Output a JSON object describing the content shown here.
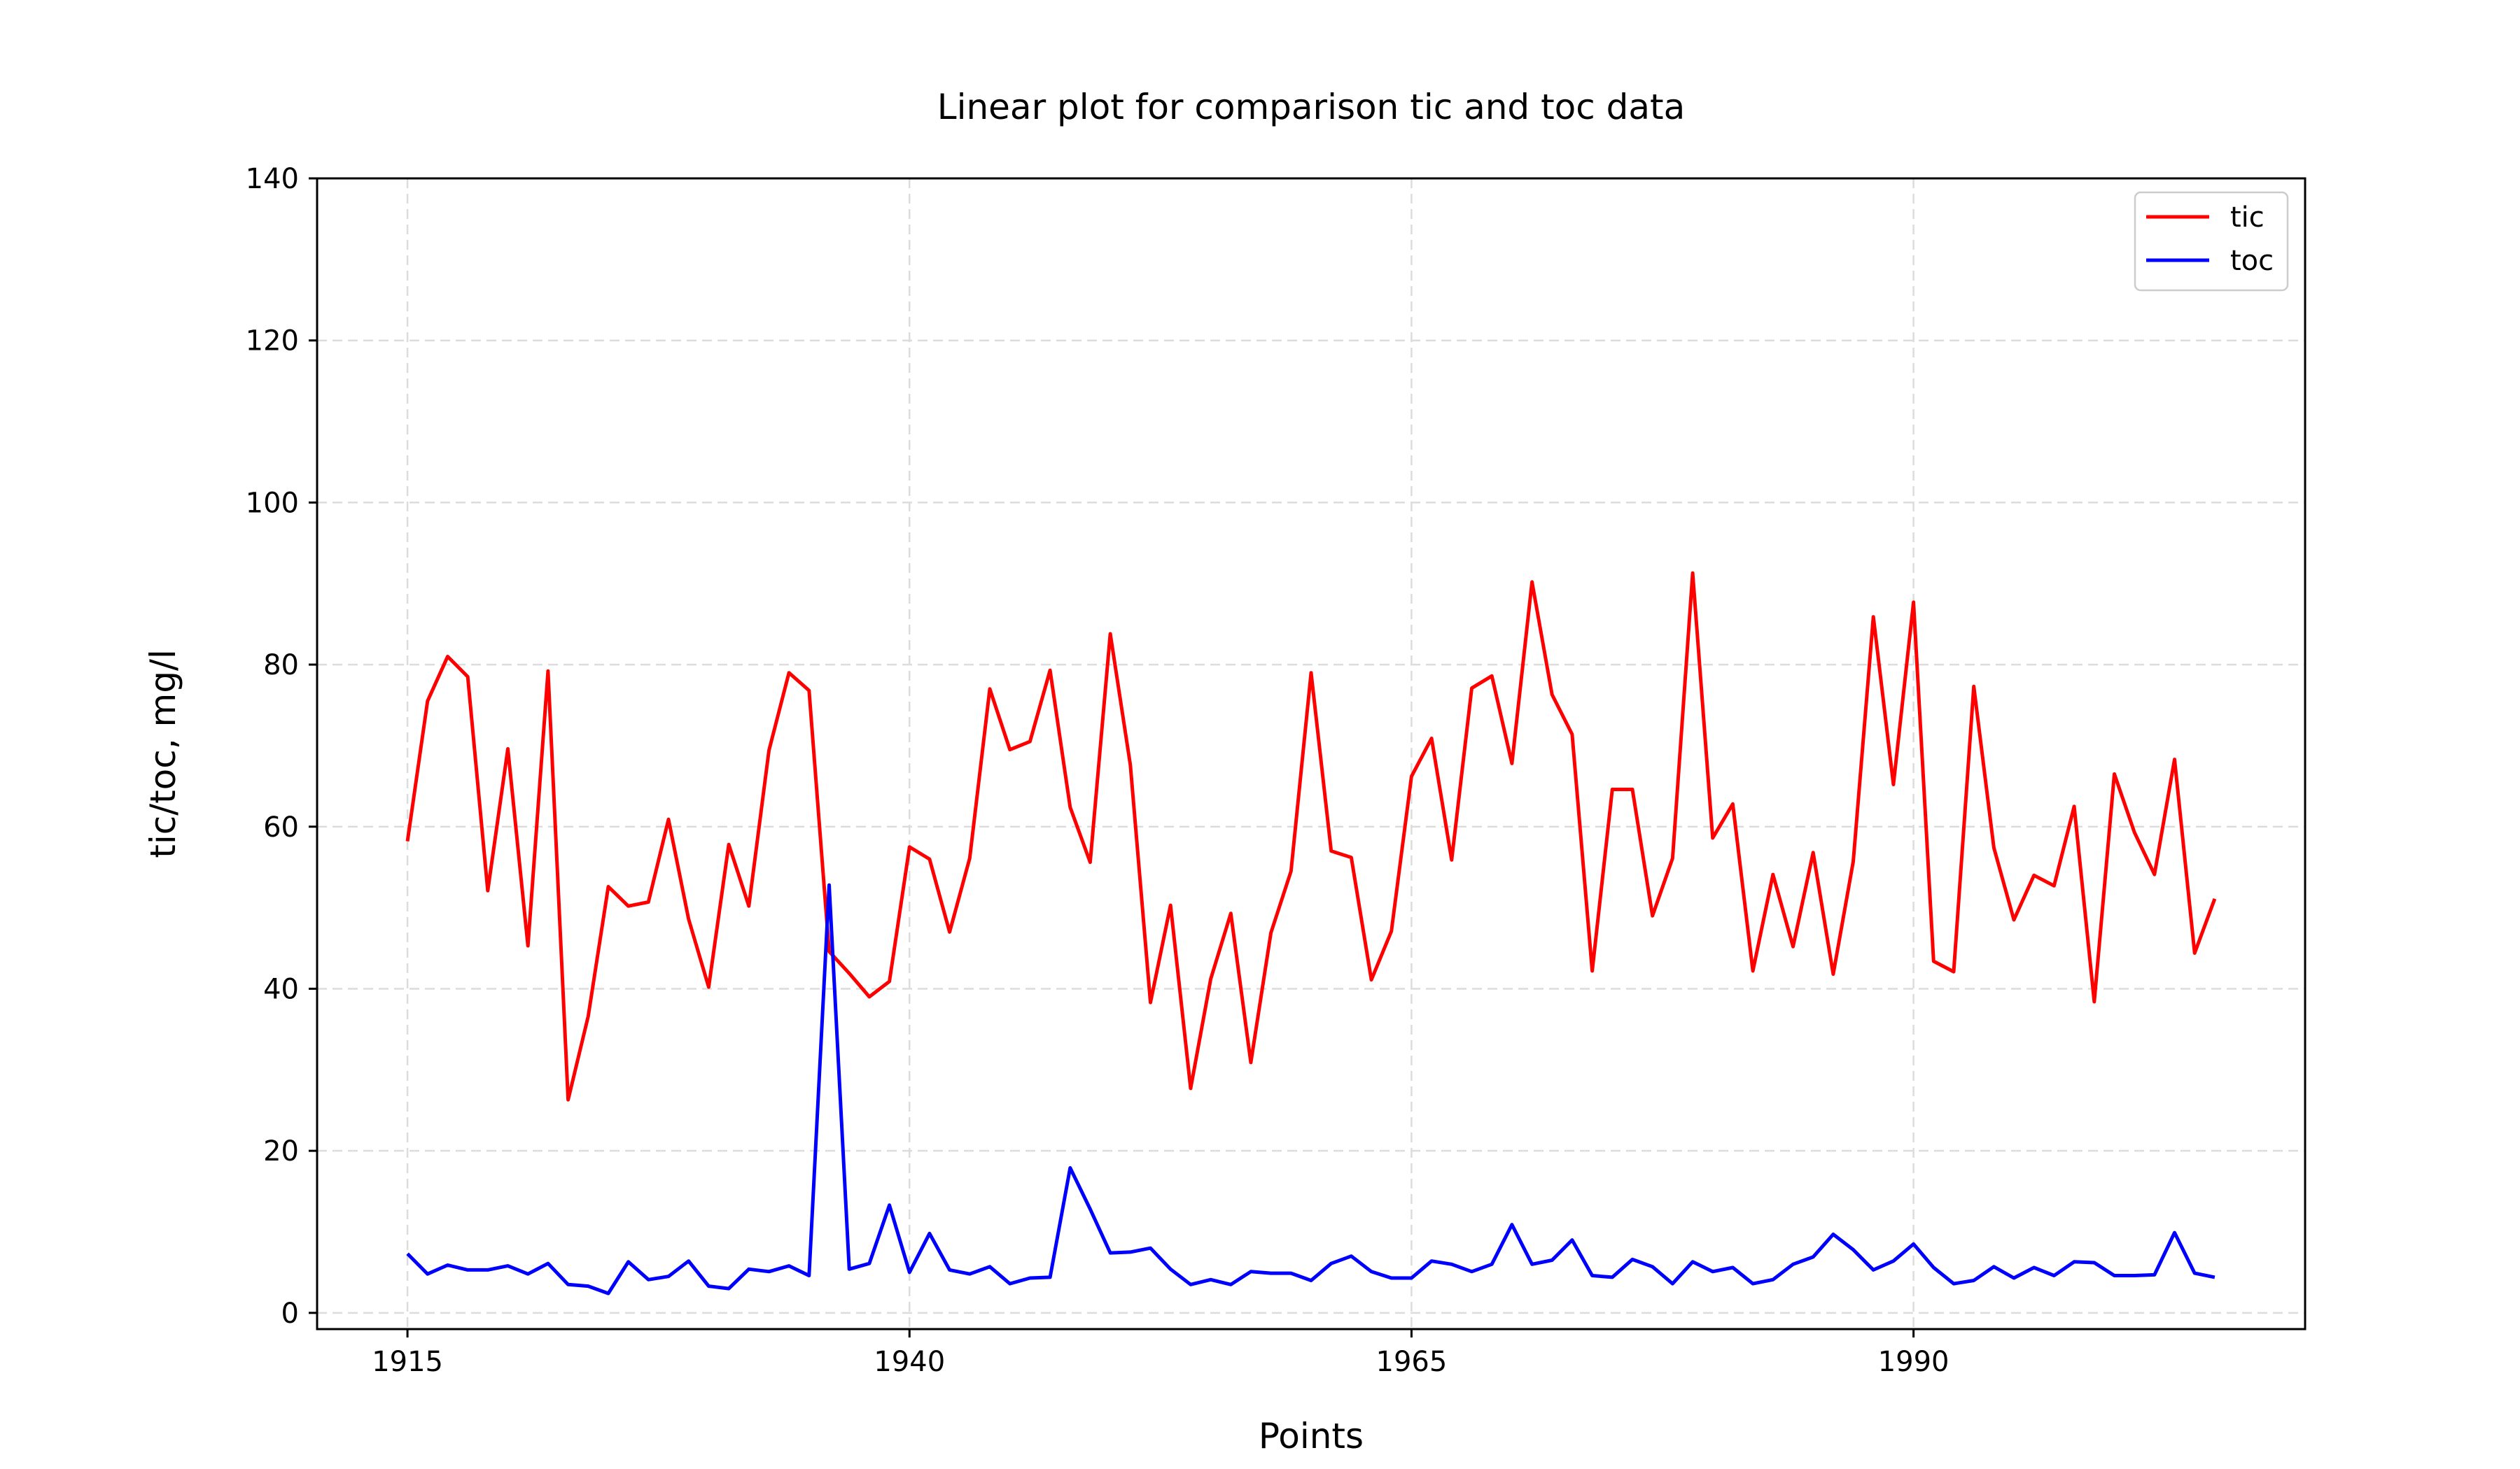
{
  "chart_data": {
    "type": "line",
    "title": "Linear plot for comparison tic and toc data",
    "xlabel": "Points",
    "ylabel": "tic/toc, mg/l",
    "xlim": [
      1910.5,
      2009.5
    ],
    "ylim": [
      -2,
      140
    ],
    "xticks": [
      1915,
      1940,
      1965,
      1990
    ],
    "yticks": [
      0,
      20,
      40,
      60,
      80,
      100,
      120,
      140
    ],
    "grid": true,
    "legend_position": "top-right",
    "x": [
      1915,
      1916,
      1917,
      1918,
      1919,
      1920,
      1921,
      1922,
      1923,
      1924,
      1925,
      1926,
      1927,
      1928,
      1929,
      1930,
      1931,
      1932,
      1933,
      1934,
      1935,
      1936,
      1937,
      1938,
      1939,
      1940,
      1941,
      1942,
      1943,
      1944,
      1945,
      1946,
      1947,
      1948,
      1949,
      1950,
      1951,
      1952,
      1953,
      1954,
      1955,
      1956,
      1957,
      1958,
      1959,
      1960,
      1961,
      1962,
      1963,
      1964,
      1965,
      1966,
      1967,
      1968,
      1969,
      1970,
      1971,
      1972,
      1973,
      1974,
      1975,
      1976,
      1977,
      1978,
      1979,
      1980,
      1981,
      1982,
      1983,
      1984,
      1985,
      1986,
      1987,
      1988,
      1989,
      1990,
      1991,
      1992,
      1993,
      1994,
      1995,
      1996,
      1997,
      1998,
      1999,
      2000,
      2001,
      2002,
      2003,
      2004,
      2005
    ],
    "series": [
      {
        "name": "tic",
        "color": "#ff0000",
        "values": [
          58.2,
          75.5,
          81.0,
          78.5,
          52.1,
          69.6,
          45.3,
          79.2,
          26.3,
          36.6,
          52.6,
          50.2,
          50.7,
          60.9,
          48.6,
          40.2,
          57.8,
          50.2,
          69.4,
          79.0,
          76.8,
          44.6,
          41.9,
          39.0,
          40.9,
          57.5,
          56.0,
          47.0,
          56.1,
          77.0,
          69.5,
          70.5,
          79.3,
          62.4,
          55.6,
          83.8,
          67.6,
          38.3,
          50.3,
          27.7,
          41.2,
          49.3,
          30.9,
          46.9,
          54.5,
          79.0,
          57.0,
          56.2,
          41.1,
          47.1,
          66.2,
          70.9,
          55.9,
          77.1,
          78.6,
          67.8,
          90.2,
          76.3,
          71.4,
          42.2,
          64.6,
          64.6,
          49.0,
          56.1,
          91.3,
          58.6,
          62.8,
          42.2,
          54.1,
          45.2,
          56.8,
          41.8,
          55.7,
          85.9,
          65.2,
          87.7,
          43.4,
          42.1,
          77.3,
          57.4,
          48.5,
          54.0,
          52.7,
          62.5,
          38.4,
          66.5,
          59.3,
          54.1,
          68.3,
          44.4,
          51.1
        ]
      },
      {
        "name": "toc",
        "color": "#0000ff",
        "values": [
          7.3,
          4.8,
          5.9,
          5.3,
          5.3,
          5.8,
          4.8,
          6.1,
          3.5,
          3.3,
          2.4,
          6.3,
          4.1,
          4.5,
          6.4,
          3.3,
          3.0,
          5.4,
          5.1,
          5.8,
          4.6,
          52.8,
          5.4,
          6.1,
          13.3,
          5.0,
          9.8,
          5.3,
          4.8,
          5.7,
          3.6,
          4.3,
          4.4,
          17.9,
          12.8,
          7.4,
          7.5,
          8.0,
          5.4,
          3.5,
          4.1,
          3.5,
          5.1,
          4.9,
          4.9,
          4.0,
          6.1,
          7.0,
          5.1,
          4.3,
          4.3,
          6.4,
          6.0,
          5.1,
          6.0,
          10.9,
          6.0,
          6.5,
          9.0,
          4.6,
          4.4,
          6.6,
          5.7,
          3.6,
          6.3,
          5.1,
          5.6,
          3.6,
          4.1,
          6.0,
          6.9,
          9.7,
          7.8,
          5.3,
          6.4,
          8.5,
          5.6,
          3.6,
          4.0,
          5.7,
          4.3,
          5.6,
          4.6,
          6.3,
          6.2,
          4.6,
          4.6,
          4.7,
          9.9,
          4.9,
          4.4
        ]
      }
    ]
  }
}
